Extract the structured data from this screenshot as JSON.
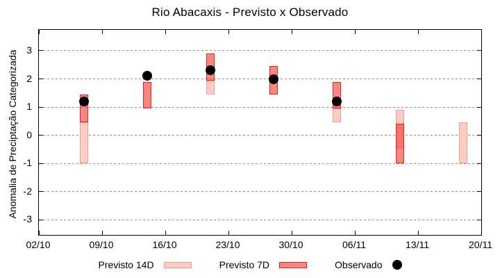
{
  "title": "Rio Abacaxis - Previsto x Observado",
  "chart_data": {
    "type": "bar",
    "subtype": "range-bars-with-scatter-overlay",
    "title": "Rio Abacaxis - Previsto x Observado",
    "xlabel": "",
    "ylabel": "Anomalia de Preciptação Categorizada",
    "x_tick_labels": [
      "02/10",
      "09/10",
      "16/10",
      "23/10",
      "30/10",
      "06/11",
      "13/11",
      "20/11"
    ],
    "x_tick_days": [
      0,
      7,
      14,
      21,
      28,
      35,
      42,
      49
    ],
    "xlim_days": [
      0,
      49
    ],
    "y_ticks": [
      -3,
      -2,
      -1,
      0,
      1,
      2,
      3
    ],
    "ylim": [
      -3.54,
      3.74
    ],
    "grid": "horizontal dotted gridlines at integer y values, ticks mirrored on top and right",
    "legend_position": "below plot, centered",
    "bars_x_dates": [
      "07/10",
      "14/10",
      "21/10",
      "28/10",
      "04/11",
      "11/11",
      "18/11"
    ],
    "bars_x_days": [
      5,
      12,
      19,
      26,
      33,
      40,
      47
    ],
    "series": [
      {
        "name": "Previsto 14D",
        "type": "range-bar",
        "ranges": [
          [
            -1.0,
            0.45
          ],
          null,
          [
            1.45,
            1.95
          ],
          null,
          [
            0.45,
            0.95
          ],
          [
            -0.45,
            0.9
          ],
          [
            -1.0,
            0.45
          ]
        ]
      },
      {
        "name": "Previsto 7D",
        "type": "range-bar",
        "ranges": [
          [
            0.45,
            1.45
          ],
          [
            0.95,
            1.9
          ],
          [
            1.95,
            2.9
          ],
          [
            1.45,
            2.45
          ],
          [
            0.95,
            1.9
          ],
          [
            -1.0,
            0.4
          ],
          null
        ]
      },
      {
        "name": "Observado",
        "type": "scatter",
        "values": [
          1.2,
          2.1,
          2.3,
          2.0,
          1.2,
          null,
          null
        ]
      }
    ],
    "colors": {
      "previsto_14d_fill": "#fbcdc5",
      "previsto_14d_border": "#f59a8d",
      "previsto_7d_fill": "rgba(243,62,52,0.62)",
      "previsto_7d_border": "#e2231a",
      "observado": "#000000",
      "grid": "#8f8f8f",
      "axis": "#000000",
      "background": "#ffffff"
    }
  }
}
